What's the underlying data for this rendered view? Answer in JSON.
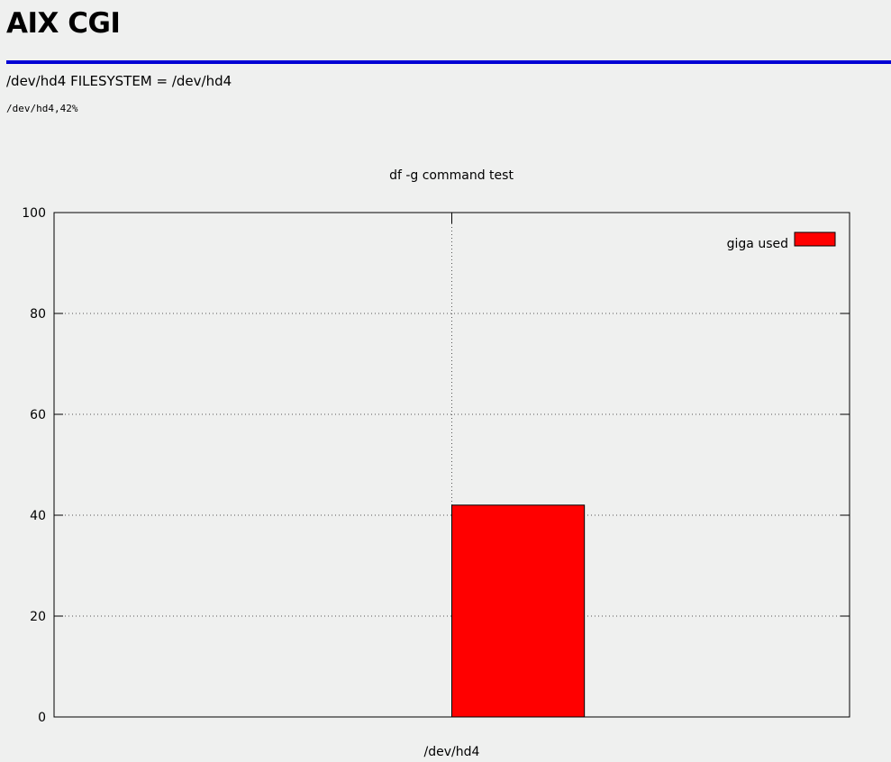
{
  "page": {
    "title": "AIX CGI",
    "filesystem_heading": "/dev/hd4 FILESYSTEM = /dev/hd4",
    "df_output": "/dev/hd4,42%"
  },
  "colors": {
    "rule": "#0000d4",
    "bar": "#ff0000",
    "background": "#eff0ef"
  },
  "chart_data": {
    "type": "bar",
    "title": "df -g command test",
    "categories": [
      "/dev/hd4"
    ],
    "series": [
      {
        "name": "giga used",
        "values": [
          42
        ],
        "color": "#ff0000"
      }
    ],
    "xlabel": "",
    "ylabel": "",
    "ylim": [
      0,
      100
    ],
    "yticks": [
      0,
      20,
      40,
      60,
      80,
      100
    ],
    "ytick_labels": [
      "0",
      "20",
      "40",
      "60",
      "80",
      "100"
    ],
    "grid": true,
    "legend": "top-right"
  }
}
